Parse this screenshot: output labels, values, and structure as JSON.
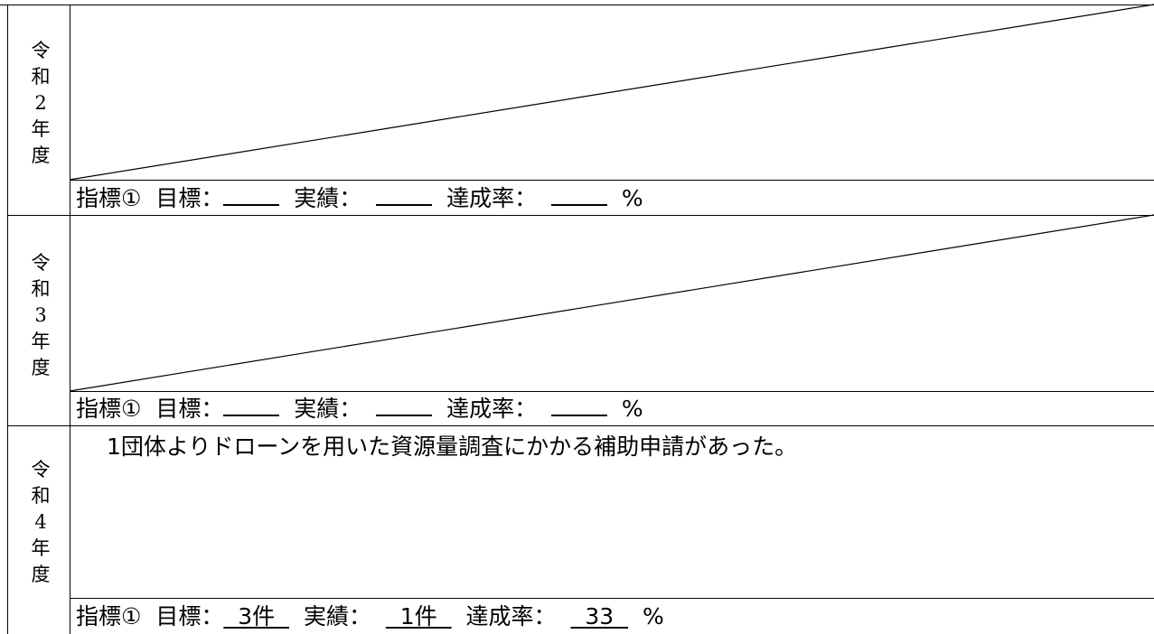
{
  "rows": [
    {
      "year_chars": [
        "令",
        "和",
        "2",
        "年",
        "度"
      ],
      "body": "",
      "indicator": {
        "name": "指標①",
        "target_label": "目標：",
        "target_value": "",
        "actual_label": "実績：",
        "actual_value": "",
        "rate_label": "達成率：",
        "rate_value": "",
        "unit": "%"
      }
    },
    {
      "year_chars": [
        "令",
        "和",
        "3",
        "年",
        "度"
      ],
      "body": "",
      "indicator": {
        "name": "指標①",
        "target_label": "目標：",
        "target_value": "",
        "actual_label": "実績：",
        "actual_value": "",
        "rate_label": "達成率：",
        "rate_value": "",
        "unit": "%"
      }
    },
    {
      "year_chars": [
        "令",
        "和",
        "4",
        "年",
        "度"
      ],
      "body": "1団体よりドローンを用いた資源量調査にかかる補助申請があった。",
      "indicator": {
        "name": "指標①",
        "target_label": "目標：",
        "target_value": "3件",
        "actual_label": "実績：",
        "actual_value": "1件",
        "rate_label": "達成率：",
        "rate_value": "33",
        "unit": "%"
      }
    }
  ]
}
